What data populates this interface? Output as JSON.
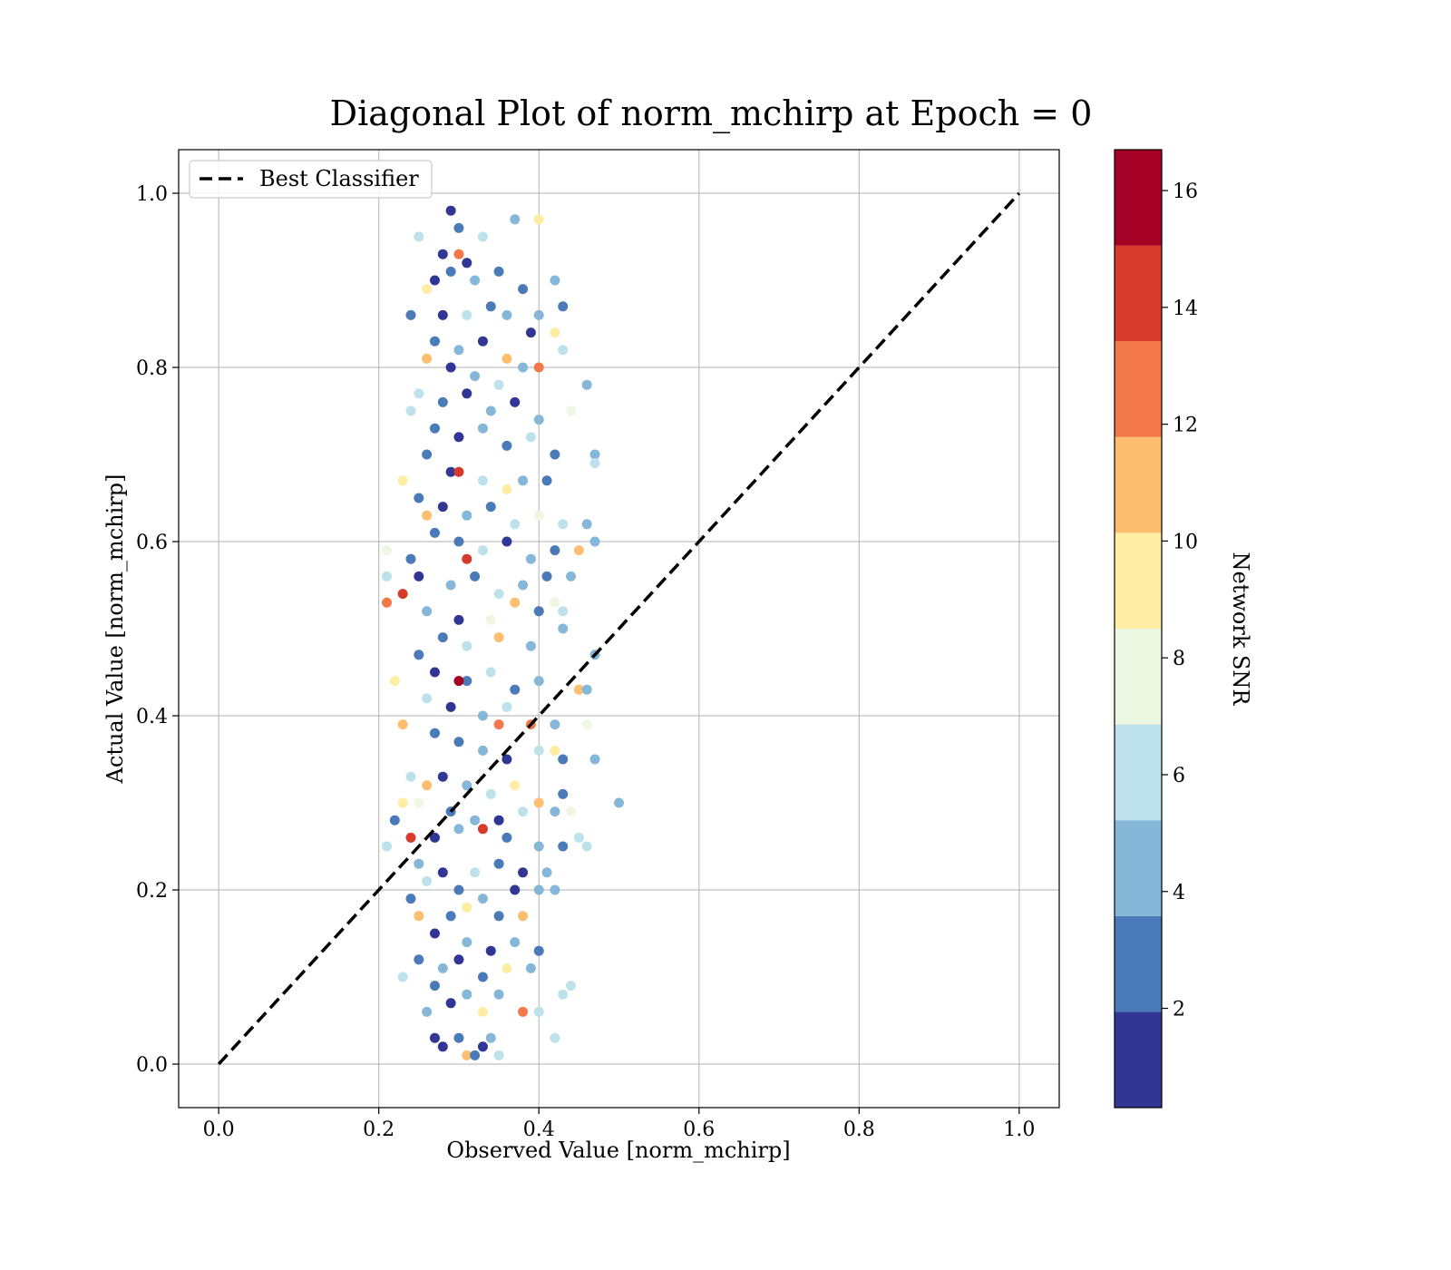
{
  "chart_data": {
    "type": "scatter",
    "title": "Diagonal Plot of norm_mchirp at Epoch = 0",
    "xlabel": "Observed Value [norm_mchirp]",
    "ylabel": "Actual Value [norm_mchirp]",
    "xlim": [
      -0.05,
      1.05
    ],
    "ylim": [
      -0.05,
      1.05
    ],
    "xticks": [
      "0.0",
      "0.2",
      "0.4",
      "0.6",
      "0.8",
      "1.0"
    ],
    "yticks": [
      "0.0",
      "0.2",
      "0.4",
      "0.6",
      "0.8",
      "1.0"
    ],
    "grid": true,
    "legend": {
      "placement": "top-left",
      "entries": [
        "Best Classifier"
      ]
    },
    "reference_line": {
      "name": "Best Classifier",
      "style": "dashed",
      "color": "#000000",
      "x": [
        0.0,
        1.0
      ],
      "y": [
        0.0,
        1.0
      ]
    },
    "colorbar": {
      "label": "Network SNR",
      "colormap": "RdYlBu_r (discrete)",
      "range": [
        0.3,
        16.7
      ],
      "bins": [
        0.3,
        1.94,
        3.58,
        5.22,
        6.86,
        8.5,
        10.14,
        11.78,
        13.42,
        15.06,
        16.7
      ],
      "colors": [
        "#313695",
        "#4a7ab8",
        "#85b8d8",
        "#bde2ec",
        "#eef7e2",
        "#feeda3",
        "#fdbe70",
        "#f4794a",
        "#d73a2a",
        "#a50026"
      ],
      "ticks": [
        "2",
        "4",
        "6",
        "8",
        "10",
        "12",
        "14",
        "16"
      ]
    },
    "series_summary": {
      "x_range": [
        0.2,
        0.5
      ],
      "y_range": [
        0.0,
        0.98
      ],
      "x_center": 0.31
    },
    "series": [
      {
        "points": [
          [
            0.29,
            0.98,
            1.2
          ],
          [
            0.3,
            0.96,
            2.5
          ],
          [
            0.28,
            0.93,
            1.0
          ],
          [
            0.31,
            0.92,
            0.8
          ],
          [
            0.33,
            0.95,
            5.5
          ],
          [
            0.37,
            0.97,
            4.2
          ],
          [
            0.4,
            0.97,
            9.5
          ],
          [
            0.25,
            0.95,
            5.8
          ],
          [
            0.29,
            0.91,
            2.8
          ],
          [
            0.32,
            0.9,
            4.5
          ],
          [
            0.35,
            0.91,
            3.3
          ],
          [
            0.3,
            0.93,
            12.5
          ],
          [
            0.27,
            0.9,
            1.5
          ],
          [
            0.26,
            0.89,
            9.0
          ],
          [
            0.38,
            0.89,
            2.7
          ],
          [
            0.42,
            0.9,
            4.4
          ],
          [
            0.28,
            0.86,
            1.3
          ],
          [
            0.24,
            0.86,
            2.9
          ],
          [
            0.31,
            0.86,
            5.6
          ],
          [
            0.34,
            0.87,
            2.0
          ],
          [
            0.36,
            0.86,
            4.0
          ],
          [
            0.4,
            0.86,
            4.6
          ],
          [
            0.43,
            0.87,
            3.1
          ],
          [
            0.39,
            0.84,
            1.1
          ],
          [
            0.42,
            0.84,
            9.3
          ],
          [
            0.27,
            0.83,
            2.2
          ],
          [
            0.3,
            0.82,
            3.7
          ],
          [
            0.33,
            0.83,
            1.4
          ],
          [
            0.36,
            0.81,
            11.0
          ],
          [
            0.26,
            0.81,
            11.5
          ],
          [
            0.43,
            0.82,
            6.0
          ],
          [
            0.29,
            0.8,
            0.9
          ],
          [
            0.32,
            0.79,
            4.1
          ],
          [
            0.35,
            0.78,
            6.3
          ],
          [
            0.38,
            0.8,
            3.9
          ],
          [
            0.4,
            0.8,
            12.0
          ],
          [
            0.46,
            0.78,
            4.3
          ],
          [
            0.25,
            0.77,
            5.9
          ],
          [
            0.28,
            0.76,
            2.6
          ],
          [
            0.31,
            0.77,
            1.6
          ],
          [
            0.34,
            0.75,
            5.2
          ],
          [
            0.37,
            0.76,
            1.3
          ],
          [
            0.4,
            0.74,
            4.8
          ],
          [
            0.44,
            0.75,
            7.8
          ],
          [
            0.24,
            0.75,
            6.5
          ],
          [
            0.27,
            0.73,
            2.3
          ],
          [
            0.3,
            0.72,
            1.0
          ],
          [
            0.33,
            0.73,
            3.6
          ],
          [
            0.36,
            0.71,
            2.8
          ],
          [
            0.39,
            0.72,
            5.4
          ],
          [
            0.42,
            0.7,
            2.1
          ],
          [
            0.47,
            0.7,
            4.7
          ],
          [
            0.47,
            0.69,
            6.2
          ],
          [
            0.26,
            0.7,
            3.2
          ],
          [
            0.29,
            0.68,
            1.7
          ],
          [
            0.3,
            0.68,
            14.5
          ],
          [
            0.33,
            0.67,
            6.6
          ],
          [
            0.36,
            0.66,
            9.6
          ],
          [
            0.38,
            0.67,
            5.1
          ],
          [
            0.41,
            0.67,
            2.4
          ],
          [
            0.23,
            0.67,
            9.4
          ],
          [
            0.25,
            0.65,
            3.4
          ],
          [
            0.28,
            0.64,
            1.2
          ],
          [
            0.31,
            0.63,
            4.2
          ],
          [
            0.34,
            0.64,
            2.9
          ],
          [
            0.37,
            0.62,
            6.1
          ],
          [
            0.4,
            0.63,
            8.2
          ],
          [
            0.43,
            0.62,
            5.3
          ],
          [
            0.46,
            0.62,
            4.9
          ],
          [
            0.47,
            0.6,
            4.0
          ],
          [
            0.26,
            0.63,
            11.3
          ],
          [
            0.27,
            0.61,
            2.0
          ],
          [
            0.3,
            0.6,
            3.1
          ],
          [
            0.33,
            0.59,
            5.7
          ],
          [
            0.36,
            0.6,
            1.4
          ],
          [
            0.39,
            0.58,
            4.5
          ],
          [
            0.42,
            0.59,
            3.0
          ],
          [
            0.45,
            0.59,
            11.2
          ],
          [
            0.21,
            0.59,
            7.5
          ],
          [
            0.24,
            0.58,
            2.5
          ],
          [
            0.31,
            0.58,
            15.0
          ],
          [
            0.21,
            0.56,
            5.9
          ],
          [
            0.25,
            0.56,
            1.6
          ],
          [
            0.29,
            0.55,
            3.8
          ],
          [
            0.32,
            0.56,
            2.3
          ],
          [
            0.35,
            0.54,
            6.4
          ],
          [
            0.38,
            0.55,
            4.1
          ],
          [
            0.41,
            0.56,
            2.9
          ],
          [
            0.44,
            0.56,
            5.0
          ],
          [
            0.21,
            0.53,
            13.0
          ],
          [
            0.23,
            0.54,
            14.0
          ],
          [
            0.26,
            0.52,
            4.3
          ],
          [
            0.3,
            0.51,
            1.1
          ],
          [
            0.34,
            0.51,
            7.9
          ],
          [
            0.37,
            0.53,
            11.5
          ],
          [
            0.4,
            0.52,
            3.3
          ],
          [
            0.43,
            0.52,
            6.0
          ],
          [
            0.42,
            0.53,
            8.1
          ],
          [
            0.28,
            0.49,
            2.4
          ],
          [
            0.31,
            0.48,
            5.5
          ],
          [
            0.35,
            0.49,
            10.5
          ],
          [
            0.39,
            0.48,
            4.4
          ],
          [
            0.43,
            0.5,
            4.6
          ],
          [
            0.47,
            0.47,
            4.3
          ],
          [
            0.25,
            0.47,
            3.2
          ],
          [
            0.27,
            0.45,
            1.0
          ],
          [
            0.31,
            0.44,
            2.7
          ],
          [
            0.3,
            0.44,
            16.5
          ],
          [
            0.34,
            0.45,
            6.7
          ],
          [
            0.37,
            0.43,
            3.5
          ],
          [
            0.4,
            0.44,
            5.2
          ],
          [
            0.45,
            0.43,
            11.0
          ],
          [
            0.46,
            0.43,
            4.1
          ],
          [
            0.22,
            0.44,
            9.5
          ],
          [
            0.26,
            0.42,
            5.6
          ],
          [
            0.29,
            0.41,
            1.8
          ],
          [
            0.33,
            0.4,
            4.0
          ],
          [
            0.36,
            0.41,
            6.5
          ],
          [
            0.39,
            0.39,
            11.8
          ],
          [
            0.35,
            0.39,
            13.4
          ],
          [
            0.42,
            0.39,
            4.6
          ],
          [
            0.46,
            0.39,
            7.3
          ],
          [
            0.23,
            0.39,
            10.2
          ],
          [
            0.27,
            0.38,
            3.3
          ],
          [
            0.3,
            0.37,
            2.2
          ],
          [
            0.33,
            0.36,
            4.9
          ],
          [
            0.36,
            0.35,
            1.5
          ],
          [
            0.4,
            0.36,
            6.1
          ],
          [
            0.43,
            0.35,
            3.0
          ],
          [
            0.47,
            0.35,
            4.5
          ],
          [
            0.24,
            0.33,
            5.8
          ],
          [
            0.28,
            0.33,
            1.3
          ],
          [
            0.31,
            0.32,
            3.9
          ],
          [
            0.34,
            0.31,
            6.2
          ],
          [
            0.37,
            0.32,
            9.1
          ],
          [
            0.42,
            0.36,
            10.1
          ],
          [
            0.43,
            0.31,
            2.6
          ],
          [
            0.26,
            0.32,
            11.3
          ],
          [
            0.23,
            0.3,
            9.8
          ],
          [
            0.25,
            0.3,
            7.2
          ],
          [
            0.29,
            0.29,
            2.1
          ],
          [
            0.32,
            0.28,
            4.4
          ],
          [
            0.35,
            0.28,
            1.2
          ],
          [
            0.38,
            0.29,
            5.3
          ],
          [
            0.4,
            0.3,
            11.0
          ],
          [
            0.42,
            0.29,
            3.7
          ],
          [
            0.5,
            0.3,
            4.2
          ],
          [
            0.44,
            0.29,
            6.9
          ],
          [
            0.22,
            0.28,
            3.0
          ],
          [
            0.27,
            0.26,
            1.0
          ],
          [
            0.3,
            0.27,
            5.1
          ],
          [
            0.33,
            0.27,
            14.3
          ],
          [
            0.36,
            0.26,
            2.5
          ],
          [
            0.4,
            0.25,
            4.7
          ],
          [
            0.43,
            0.25,
            2.3
          ],
          [
            0.45,
            0.26,
            5.8
          ],
          [
            0.46,
            0.25,
            5.6
          ],
          [
            0.21,
            0.25,
            6.0
          ],
          [
            0.24,
            0.26,
            14.1
          ],
          [
            0.25,
            0.23,
            3.6
          ],
          [
            0.28,
            0.22,
            1.9
          ],
          [
            0.32,
            0.22,
            6.3
          ],
          [
            0.35,
            0.23,
            3.1
          ],
          [
            0.38,
            0.22,
            1.4
          ],
          [
            0.41,
            0.22,
            4.9
          ],
          [
            0.26,
            0.21,
            5.4
          ],
          [
            0.3,
            0.2,
            2.8
          ],
          [
            0.33,
            0.19,
            4.1
          ],
          [
            0.37,
            0.2,
            1.7
          ],
          [
            0.4,
            0.2,
            4.4
          ],
          [
            0.24,
            0.19,
            2.2
          ],
          [
            0.29,
            0.17,
            3.3
          ],
          [
            0.31,
            0.18,
            9.9
          ],
          [
            0.35,
            0.17,
            2.0
          ],
          [
            0.38,
            0.17,
            11.2
          ],
          [
            0.25,
            0.17,
            11.6
          ],
          [
            0.42,
            0.2,
            4.0
          ],
          [
            0.27,
            0.15,
            1.1
          ],
          [
            0.31,
            0.14,
            4.8
          ],
          [
            0.34,
            0.13,
            1.6
          ],
          [
            0.37,
            0.14,
            5.2
          ],
          [
            0.4,
            0.13,
            2.9
          ],
          [
            0.25,
            0.12,
            2.4
          ],
          [
            0.28,
            0.11,
            3.8
          ],
          [
            0.3,
            0.12,
            1.2
          ],
          [
            0.33,
            0.1,
            2.6
          ],
          [
            0.36,
            0.11,
            9.7
          ],
          [
            0.39,
            0.11,
            4.3
          ],
          [
            0.44,
            0.09,
            6.1
          ],
          [
            0.23,
            0.1,
            5.7
          ],
          [
            0.27,
            0.09,
            2.7
          ],
          [
            0.31,
            0.08,
            5.1
          ],
          [
            0.35,
            0.08,
            4.6
          ],
          [
            0.29,
            0.07,
            1.5
          ],
          [
            0.33,
            0.06,
            10.0
          ],
          [
            0.38,
            0.06,
            13.0
          ],
          [
            0.4,
            0.06,
            6.5
          ],
          [
            0.43,
            0.08,
            5.9
          ],
          [
            0.26,
            0.06,
            4.2
          ],
          [
            0.27,
            0.03,
            0.9
          ],
          [
            0.3,
            0.03,
            2.3
          ],
          [
            0.34,
            0.03,
            4.9
          ],
          [
            0.42,
            0.03,
            6.2
          ],
          [
            0.28,
            0.02,
            1.3
          ],
          [
            0.31,
            0.01,
            11.0
          ],
          [
            0.32,
            0.01,
            3.4
          ],
          [
            0.35,
            0.01,
            5.6
          ],
          [
            0.33,
            0.02,
            1.8
          ]
        ]
      }
    ]
  }
}
